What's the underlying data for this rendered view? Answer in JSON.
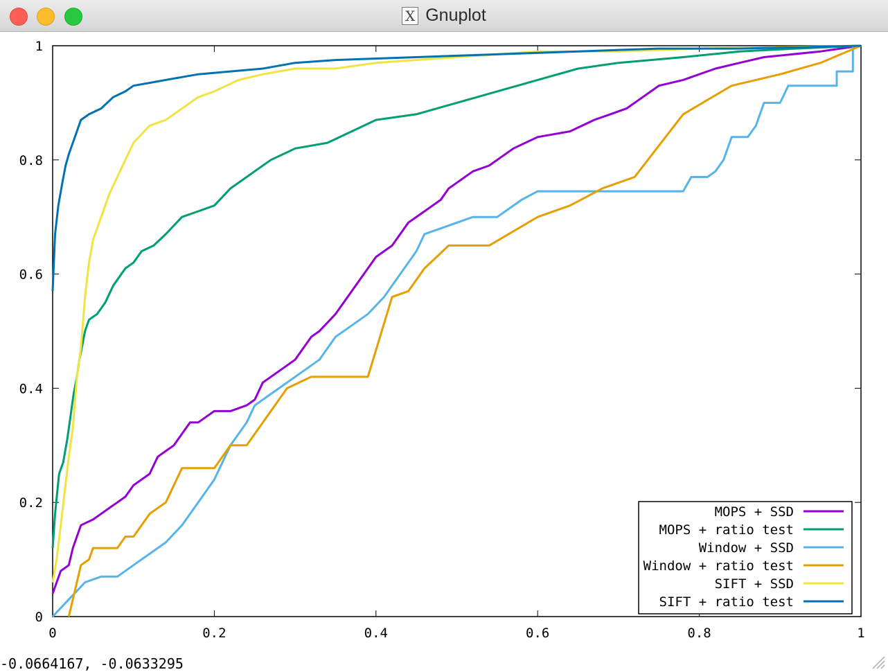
{
  "window": {
    "title": "Gnuplot",
    "app_icon": "x11-icon"
  },
  "status": {
    "coordinates": "-0.0664167, -0.0633295"
  },
  "chart_data": {
    "type": "line",
    "title": "",
    "xlabel": "",
    "ylabel": "",
    "xlim": [
      0,
      1
    ],
    "ylim": [
      0,
      1
    ],
    "x_ticks": [
      "0",
      "0.2",
      "0.4",
      "0.6",
      "0.8",
      "1"
    ],
    "y_ticks": [
      "0",
      "0.2",
      "0.4",
      "0.6",
      "0.8",
      "1"
    ],
    "grid": false,
    "legend_position": "bottom-right",
    "series": [
      {
        "name": "MOPS + SSD",
        "color": "#9400d3",
        "points": [
          [
            0,
            0.04
          ],
          [
            0.005,
            0.06
          ],
          [
            0.01,
            0.08
          ],
          [
            0.02,
            0.09
          ],
          [
            0.025,
            0.12
          ],
          [
            0.03,
            0.14
          ],
          [
            0.035,
            0.16
          ],
          [
            0.05,
            0.17
          ],
          [
            0.06,
            0.18
          ],
          [
            0.07,
            0.19
          ],
          [
            0.08,
            0.2
          ],
          [
            0.09,
            0.21
          ],
          [
            0.1,
            0.23
          ],
          [
            0.11,
            0.24
          ],
          [
            0.12,
            0.25
          ],
          [
            0.13,
            0.28
          ],
          [
            0.14,
            0.29
          ],
          [
            0.15,
            0.3
          ],
          [
            0.16,
            0.32
          ],
          [
            0.17,
            0.34
          ],
          [
            0.18,
            0.34
          ],
          [
            0.2,
            0.36
          ],
          [
            0.22,
            0.36
          ],
          [
            0.24,
            0.37
          ],
          [
            0.25,
            0.38
          ],
          [
            0.26,
            0.41
          ],
          [
            0.28,
            0.43
          ],
          [
            0.3,
            0.45
          ],
          [
            0.32,
            0.49
          ],
          [
            0.33,
            0.5
          ],
          [
            0.35,
            0.53
          ],
          [
            0.37,
            0.57
          ],
          [
            0.4,
            0.63
          ],
          [
            0.42,
            0.65
          ],
          [
            0.44,
            0.69
          ],
          [
            0.46,
            0.71
          ],
          [
            0.48,
            0.73
          ],
          [
            0.49,
            0.75
          ],
          [
            0.5,
            0.76
          ],
          [
            0.52,
            0.78
          ],
          [
            0.54,
            0.79
          ],
          [
            0.57,
            0.82
          ],
          [
            0.6,
            0.84
          ],
          [
            0.64,
            0.85
          ],
          [
            0.67,
            0.87
          ],
          [
            0.69,
            0.88
          ],
          [
            0.71,
            0.89
          ],
          [
            0.73,
            0.91
          ],
          [
            0.75,
            0.93
          ],
          [
            0.78,
            0.94
          ],
          [
            0.8,
            0.95
          ],
          [
            0.82,
            0.96
          ],
          [
            0.85,
            0.97
          ],
          [
            0.88,
            0.98
          ],
          [
            0.95,
            0.99
          ],
          [
            1,
            1
          ]
        ]
      },
      {
        "name": "MOPS + ratio test",
        "color": "#009e73",
        "points": [
          [
            0,
            0.12
          ],
          [
            0.003,
            0.18
          ],
          [
            0.008,
            0.25
          ],
          [
            0.013,
            0.27
          ],
          [
            0.018,
            0.31
          ],
          [
            0.022,
            0.35
          ],
          [
            0.026,
            0.39
          ],
          [
            0.03,
            0.42
          ],
          [
            0.033,
            0.45
          ],
          [
            0.036,
            0.47
          ],
          [
            0.04,
            0.5
          ],
          [
            0.045,
            0.52
          ],
          [
            0.055,
            0.53
          ],
          [
            0.065,
            0.55
          ],
          [
            0.075,
            0.58
          ],
          [
            0.09,
            0.61
          ],
          [
            0.1,
            0.62
          ],
          [
            0.11,
            0.64
          ],
          [
            0.125,
            0.65
          ],
          [
            0.14,
            0.67
          ],
          [
            0.16,
            0.7
          ],
          [
            0.18,
            0.71
          ],
          [
            0.2,
            0.72
          ],
          [
            0.22,
            0.75
          ],
          [
            0.24,
            0.77
          ],
          [
            0.27,
            0.8
          ],
          [
            0.3,
            0.82
          ],
          [
            0.34,
            0.83
          ],
          [
            0.37,
            0.85
          ],
          [
            0.4,
            0.87
          ],
          [
            0.45,
            0.88
          ],
          [
            0.5,
            0.9
          ],
          [
            0.55,
            0.92
          ],
          [
            0.6,
            0.94
          ],
          [
            0.65,
            0.96
          ],
          [
            0.7,
            0.97
          ],
          [
            0.78,
            0.98
          ],
          [
            0.85,
            0.99
          ],
          [
            0.92,
            0.995
          ],
          [
            1,
            1
          ]
        ]
      },
      {
        "name": "Window + SSD",
        "color": "#56b4e9",
        "points": [
          [
            0,
            0
          ],
          [
            0.02,
            0.03
          ],
          [
            0.04,
            0.06
          ],
          [
            0.06,
            0.07
          ],
          [
            0.08,
            0.07
          ],
          [
            0.1,
            0.09
          ],
          [
            0.12,
            0.11
          ],
          [
            0.14,
            0.13
          ],
          [
            0.16,
            0.16
          ],
          [
            0.18,
            0.2
          ],
          [
            0.2,
            0.24
          ],
          [
            0.22,
            0.3
          ],
          [
            0.24,
            0.34
          ],
          [
            0.25,
            0.37
          ],
          [
            0.27,
            0.39
          ],
          [
            0.29,
            0.41
          ],
          [
            0.31,
            0.43
          ],
          [
            0.33,
            0.45
          ],
          [
            0.35,
            0.49
          ],
          [
            0.37,
            0.51
          ],
          [
            0.39,
            0.53
          ],
          [
            0.41,
            0.56
          ],
          [
            0.43,
            0.6
          ],
          [
            0.45,
            0.64
          ],
          [
            0.46,
            0.67
          ],
          [
            0.48,
            0.68
          ],
          [
            0.5,
            0.69
          ],
          [
            0.52,
            0.7
          ],
          [
            0.55,
            0.7
          ],
          [
            0.56,
            0.71
          ],
          [
            0.58,
            0.73
          ],
          [
            0.6,
            0.745
          ],
          [
            0.65,
            0.745
          ],
          [
            0.7,
            0.745
          ],
          [
            0.78,
            0.745
          ],
          [
            0.79,
            0.77
          ],
          [
            0.81,
            0.77
          ],
          [
            0.82,
            0.78
          ],
          [
            0.83,
            0.8
          ],
          [
            0.84,
            0.84
          ],
          [
            0.86,
            0.84
          ],
          [
            0.87,
            0.86
          ],
          [
            0.88,
            0.9
          ],
          [
            0.9,
            0.9
          ],
          [
            0.91,
            0.93
          ],
          [
            0.97,
            0.93
          ],
          [
            0.97,
            0.955
          ],
          [
            0.99,
            0.955
          ],
          [
            0.99,
            1
          ],
          [
            1,
            1
          ]
        ]
      },
      {
        "name": "Window + ratio test",
        "color": "#e69f00",
        "points": [
          [
            0.02,
            0
          ],
          [
            0.03,
            0.06
          ],
          [
            0.035,
            0.09
          ],
          [
            0.045,
            0.1
          ],
          [
            0.05,
            0.12
          ],
          [
            0.08,
            0.12
          ],
          [
            0.09,
            0.14
          ],
          [
            0.1,
            0.14
          ],
          [
            0.11,
            0.16
          ],
          [
            0.12,
            0.18
          ],
          [
            0.13,
            0.19
          ],
          [
            0.14,
            0.2
          ],
          [
            0.15,
            0.23
          ],
          [
            0.16,
            0.26
          ],
          [
            0.2,
            0.26
          ],
          [
            0.22,
            0.3
          ],
          [
            0.24,
            0.3
          ],
          [
            0.29,
            0.4
          ],
          [
            0.32,
            0.42
          ],
          [
            0.39,
            0.42
          ],
          [
            0.42,
            0.56
          ],
          [
            0.44,
            0.57
          ],
          [
            0.46,
            0.61
          ],
          [
            0.49,
            0.65
          ],
          [
            0.54,
            0.65
          ],
          [
            0.6,
            0.7
          ],
          [
            0.64,
            0.72
          ],
          [
            0.68,
            0.75
          ],
          [
            0.72,
            0.77
          ],
          [
            0.78,
            0.88
          ],
          [
            0.84,
            0.93
          ],
          [
            0.9,
            0.95
          ],
          [
            0.95,
            0.97
          ],
          [
            1,
            1
          ]
        ]
      },
      {
        "name": "SIFT + SSD",
        "color": "#f0e442",
        "points": [
          [
            0,
            0.06
          ],
          [
            0.005,
            0.1
          ],
          [
            0.01,
            0.16
          ],
          [
            0.015,
            0.22
          ],
          [
            0.02,
            0.28
          ],
          [
            0.025,
            0.33
          ],
          [
            0.03,
            0.42
          ],
          [
            0.035,
            0.47
          ],
          [
            0.04,
            0.56
          ],
          [
            0.045,
            0.62
          ],
          [
            0.05,
            0.66
          ],
          [
            0.06,
            0.7
          ],
          [
            0.07,
            0.74
          ],
          [
            0.08,
            0.77
          ],
          [
            0.09,
            0.8
          ],
          [
            0.1,
            0.83
          ],
          [
            0.12,
            0.86
          ],
          [
            0.14,
            0.87
          ],
          [
            0.16,
            0.89
          ],
          [
            0.18,
            0.91
          ],
          [
            0.2,
            0.92
          ],
          [
            0.23,
            0.94
          ],
          [
            0.26,
            0.95
          ],
          [
            0.3,
            0.96
          ],
          [
            0.35,
            0.96
          ],
          [
            0.4,
            0.97
          ],
          [
            0.5,
            0.98
          ],
          [
            0.6,
            0.99
          ],
          [
            0.7,
            0.99
          ],
          [
            0.8,
            0.995
          ],
          [
            1,
            1
          ]
        ]
      },
      {
        "name": "SIFT + ratio test",
        "color": "#0072b2",
        "points": [
          [
            0,
            0.57
          ],
          [
            0.003,
            0.67
          ],
          [
            0.007,
            0.72
          ],
          [
            0.012,
            0.76
          ],
          [
            0.016,
            0.79
          ],
          [
            0.02,
            0.81
          ],
          [
            0.025,
            0.83
          ],
          [
            0.03,
            0.85
          ],
          [
            0.035,
            0.87
          ],
          [
            0.045,
            0.88
          ],
          [
            0.06,
            0.89
          ],
          [
            0.075,
            0.91
          ],
          [
            0.09,
            0.92
          ],
          [
            0.1,
            0.93
          ],
          [
            0.12,
            0.935
          ],
          [
            0.14,
            0.94
          ],
          [
            0.16,
            0.945
          ],
          [
            0.18,
            0.95
          ],
          [
            0.22,
            0.955
          ],
          [
            0.26,
            0.96
          ],
          [
            0.3,
            0.97
          ],
          [
            0.35,
            0.975
          ],
          [
            0.45,
            0.98
          ],
          [
            0.55,
            0.985
          ],
          [
            0.65,
            0.99
          ],
          [
            0.75,
            0.995
          ],
          [
            0.85,
            0.995
          ],
          [
            1,
            1
          ]
        ]
      }
    ]
  }
}
